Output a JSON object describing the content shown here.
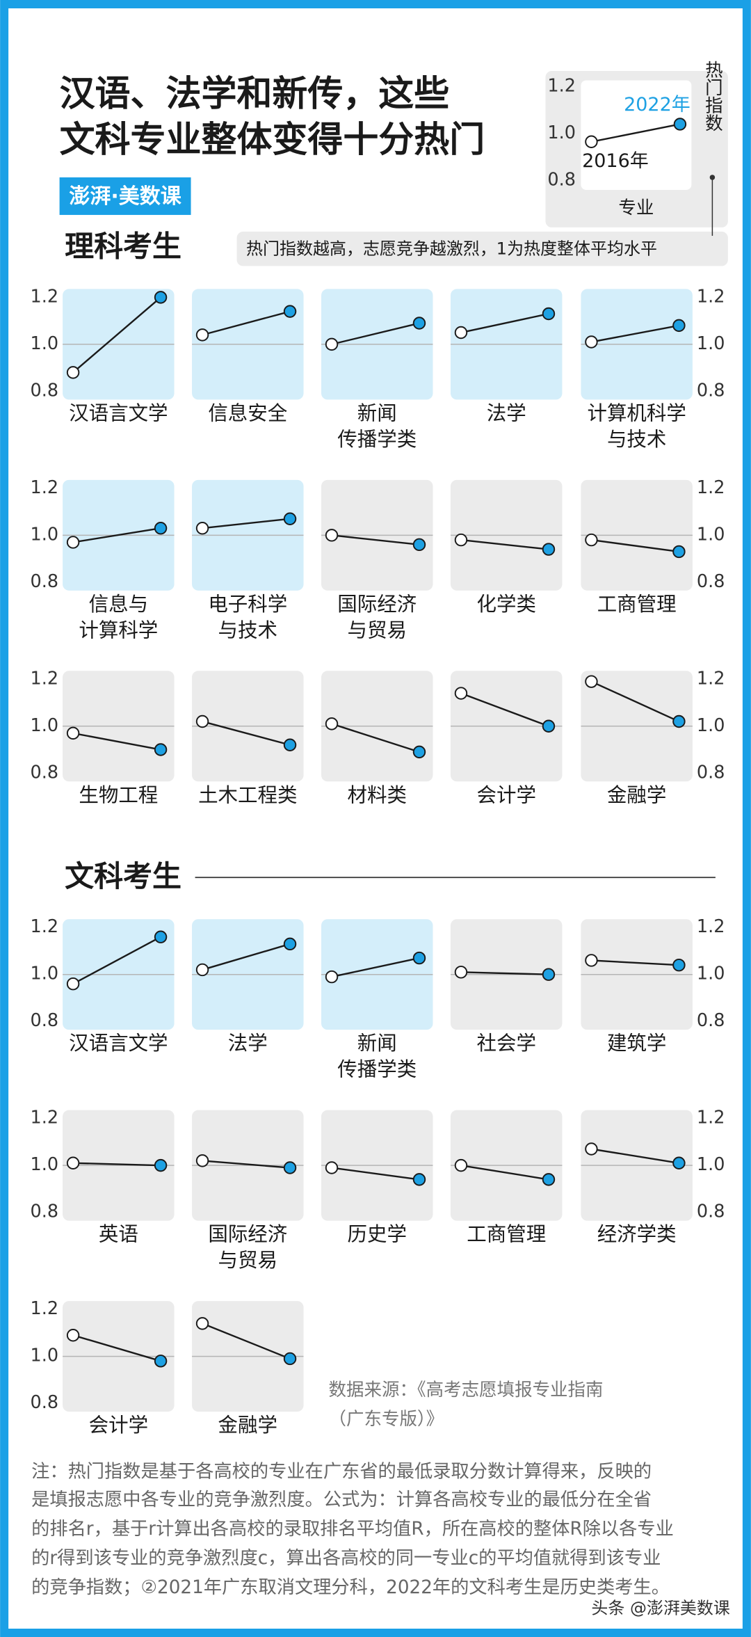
{
  "header": {
    "title": [
      "汉语、法学和新传，这些",
      "文科专业整体变得十分热门"
    ],
    "logo": "澎湃·美数课"
  },
  "sections": [
    "理科考生",
    "文科考生"
  ],
  "legend": {
    "type": "slope",
    "ylim": [
      0.8,
      1.2
    ],
    "yticks": [
      0.8,
      {
        "value": 1,
        "label": "1.0"
      },
      1.2
    ],
    "values": [
      0.965,
      1.04
    ],
    "start_label": "2016年",
    "end_label": "2022年",
    "category": "专业",
    "axis_label": "热门指数",
    "note": "热门指数越高，志愿竞争越激烈，1为热度整体平均水平"
  },
  "colors": {
    "hot": "#d4eefa",
    "cool": "#ebebeb",
    "start": "#ffffff",
    "end": "#1ea1e3",
    "line": "#1a1a1a",
    "reference": "#b5b5b5"
  },
  "chart_data": [
    {
      "type": "slope",
      "section": 0,
      "categories": [
        [
          "汉语言文学"
        ],
        [
          "信息安全"
        ],
        [
          "新闻",
          "传播学类"
        ],
        [
          "法学"
        ],
        [
          "计算机科学",
          "与技术"
        ]
      ],
      "start": [
        0.88,
        1.04,
        1.0,
        1.05,
        1.01
      ],
      "end": [
        1.2,
        1.14,
        1.09,
        1.13,
        1.08
      ],
      "hot": [
        true,
        true,
        true,
        true,
        true
      ],
      "ylim": [
        0.8,
        1.2
      ],
      "yticks": [
        0.8,
        {
          "value": 1,
          "label": "1.0"
        },
        1.2
      ],
      "reference": 1,
      "tick_sides": [
        "left",
        "right"
      ]
    },
    {
      "type": "slope",
      "section": 0,
      "categories": [
        [
          "信息与",
          "计算科学"
        ],
        [
          "电子科学",
          "与技术"
        ],
        [
          "国际经济",
          "与贸易"
        ],
        [
          "化学类"
        ],
        [
          "工商管理"
        ]
      ],
      "start": [
        0.97,
        1.03,
        1.0,
        0.98,
        0.98
      ],
      "end": [
        1.03,
        1.07,
        0.96,
        0.94,
        0.93
      ],
      "hot": [
        true,
        true,
        false,
        false,
        false
      ],
      "ylim": [
        0.8,
        1.2
      ],
      "yticks": [
        0.8,
        {
          "value": 1,
          "label": "1.0"
        },
        1.2
      ],
      "reference": 1,
      "tick_sides": [
        "left",
        "right"
      ]
    },
    {
      "type": "slope",
      "section": 0,
      "categories": [
        [
          "生物工程"
        ],
        [
          "土木工程类"
        ],
        [
          "材料类"
        ],
        [
          "会计学"
        ],
        [
          "金融学"
        ]
      ],
      "start": [
        0.97,
        1.02,
        1.01,
        1.14,
        1.19
      ],
      "end": [
        0.9,
        0.92,
        0.89,
        1.0,
        1.02
      ],
      "hot": [
        false,
        false,
        false,
        false,
        false
      ],
      "ylim": [
        0.8,
        1.2
      ],
      "yticks": [
        0.8,
        {
          "value": 1,
          "label": "1.0"
        },
        1.2
      ],
      "reference": 1,
      "tick_sides": [
        "left",
        "right"
      ]
    },
    {
      "type": "slope",
      "section": 1,
      "categories": [
        [
          "汉语言文学"
        ],
        [
          "法学"
        ],
        [
          "新闻",
          "传播学类"
        ],
        [
          "社会学"
        ],
        [
          "建筑学"
        ]
      ],
      "start": [
        0.96,
        1.02,
        0.99,
        1.01,
        1.06
      ],
      "end": [
        1.16,
        1.13,
        1.07,
        1.0,
        1.04
      ],
      "hot": [
        true,
        true,
        true,
        false,
        false
      ],
      "ylim": [
        0.8,
        1.2
      ],
      "yticks": [
        0.8,
        {
          "value": 1,
          "label": "1.0"
        },
        1.2
      ],
      "reference": 1,
      "tick_sides": [
        "left",
        "right"
      ]
    },
    {
      "type": "slope",
      "section": 1,
      "categories": [
        [
          "英语"
        ],
        [
          "国际经济",
          "与贸易"
        ],
        [
          "历史学"
        ],
        [
          "工商管理"
        ],
        [
          "经济学类"
        ]
      ],
      "start": [
        1.01,
        1.02,
        0.99,
        1.0,
        1.07
      ],
      "end": [
        1.0,
        0.99,
        0.94,
        0.94,
        1.01
      ],
      "hot": [
        false,
        false,
        false,
        false,
        false
      ],
      "ylim": [
        0.8,
        1.2
      ],
      "yticks": [
        0.8,
        {
          "value": 1,
          "label": "1.0"
        },
        1.2
      ],
      "reference": 1,
      "tick_sides": [
        "left",
        "right"
      ]
    },
    {
      "type": "slope",
      "section": 1,
      "categories": [
        [
          "会计学"
        ],
        [
          "金融学"
        ]
      ],
      "start": [
        1.09,
        1.14
      ],
      "end": [
        0.98,
        0.99
      ],
      "hot": [
        false,
        false
      ],
      "ylim": [
        0.8,
        1.2
      ],
      "yticks": [
        0.8,
        {
          "value": 1,
          "label": "1.0"
        },
        1.2
      ],
      "reference": 1,
      "tick_sides": [
        "left"
      ]
    }
  ],
  "source": [
    "数据来源：《高考志愿填报专业指南",
    "（广东专版）》"
  ],
  "note": [
    "注：热门指数是基于各高校的专业在广东省的最低录取分数计算得来，反映的",
    "是填报志愿中各专业的竞争激烈度。公式为：计算各高校专业的最低分在全省",
    "的排名r，基于r计算出各高校的录取排名平均值R，所在高校的整体R除以各专业",
    "的r得到该专业的竞争激烈度c，算出各高校的同一专业c的平均值就得到该专业",
    "的竞争指数；②2021年广东取消文理分科，2022年的文科考生是历史类考生。"
  ],
  "watermark": "头条 @澎湃美数课"
}
